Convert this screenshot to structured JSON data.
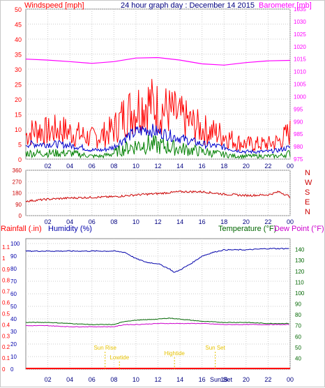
{
  "colors": {
    "windspeed": "#ff0000",
    "avg_wind": "#0000cc",
    "gust_low": "#008000",
    "barometer": "#ff00ff",
    "title": "#000080",
    "direction": "#cc0000",
    "rainfall": "#ff0000",
    "humidity": "#0000aa",
    "temperature": "#006600",
    "dewpoint": "#cc00cc",
    "sun": "#e6c200",
    "grid": "#cccccc"
  },
  "chart_data": [
    {
      "type": "line",
      "title": "24 hour graph day : December 14 2015",
      "left_label": "Windspeed [mph]",
      "right_label": "Barometer [mb]",
      "x_ticks": [
        "02",
        "04",
        "06",
        "08",
        "10",
        "12",
        "14",
        "16",
        "18",
        "20",
        "22",
        "00"
      ],
      "left_ticks": [
        "0",
        "5",
        "10",
        "15",
        "20",
        "25",
        "30",
        "35",
        "40",
        "45",
        "50"
      ],
      "right_ticks": [
        "975",
        "980",
        "985",
        "990",
        "995",
        "1000",
        "1005",
        "1010",
        "1015",
        "1020",
        "1025",
        "1030",
        "1035"
      ],
      "ylim_left": [
        0,
        50
      ],
      "ylim_right": [
        975,
        1035
      ],
      "series": [
        {
          "key": "barometer",
          "axis": "right",
          "x": [
            0,
            2,
            4,
            6,
            8,
            10,
            12,
            14,
            16,
            18,
            20,
            22,
            24
          ],
          "values": [
            1015,
            1014.6,
            1014,
            1013.3,
            1014,
            1015.4,
            1015.6,
            1014.6,
            1013.1,
            1012.6,
            1013.6,
            1014.3,
            1014.5
          ]
        },
        {
          "key": "windspeed",
          "axis": "left",
          "x": [
            0,
            1,
            2,
            3,
            4,
            5,
            6,
            7,
            8,
            9,
            10,
            11,
            12,
            13,
            14,
            15,
            16,
            17,
            18,
            19,
            20,
            21,
            22,
            23,
            24
          ],
          "values": [
            8,
            10,
            9,
            10,
            9,
            8,
            7,
            8,
            10,
            15,
            17,
            19,
            17,
            16,
            14,
            12,
            10,
            9,
            8,
            6,
            5,
            5,
            5,
            6,
            9
          ]
        },
        {
          "key": "avg_wind",
          "axis": "left",
          "x": [
            0,
            1,
            2,
            3,
            4,
            5,
            6,
            7,
            8,
            9,
            10,
            11,
            12,
            13,
            14,
            15,
            16,
            17,
            18,
            19,
            20,
            21,
            22,
            23,
            24
          ],
          "values": [
            5,
            5,
            5,
            5,
            4.5,
            4,
            3,
            3,
            4,
            7,
            9,
            10,
            9,
            8,
            7,
            6,
            5,
            4.5,
            4,
            3,
            2.5,
            2.5,
            2.5,
            3,
            4
          ]
        },
        {
          "key": "gust_low",
          "axis": "left",
          "x": [
            0,
            1,
            2,
            3,
            4,
            5,
            6,
            7,
            8,
            9,
            10,
            11,
            12,
            13,
            14,
            15,
            16,
            17,
            18,
            19,
            20,
            21,
            22,
            23,
            24
          ],
          "values": [
            2,
            2,
            2,
            2,
            2,
            1.5,
            1,
            1,
            2,
            3.5,
            4.5,
            5,
            4.5,
            4,
            3.5,
            3,
            2.5,
            2,
            1.5,
            1,
            1,
            1,
            1,
            1,
            2
          ]
        }
      ]
    },
    {
      "type": "scatter",
      "right_labels": [
        "N",
        "W",
        "S",
        "E",
        "N"
      ],
      "left_ticks": [
        "0",
        "90",
        "180",
        "270",
        "360"
      ],
      "x_ticks": [
        "02",
        "04",
        "06",
        "08",
        "10",
        "12",
        "14",
        "16",
        "18",
        "20",
        "22",
        "00"
      ],
      "ylim": [
        0,
        360
      ],
      "series": [
        {
          "key": "direction",
          "x": [
            0,
            2,
            4,
            6,
            8,
            10,
            12,
            14,
            16,
            18,
            20,
            22,
            23,
            24
          ],
          "values": [
            115,
            130,
            140,
            145,
            150,
            165,
            175,
            190,
            190,
            170,
            160,
            165,
            190,
            150
          ]
        }
      ]
    },
    {
      "type": "line",
      "labels": {
        "rainfall": "Rainfall (.in)",
        "humidity": "Humidity (%)",
        "temperature": "Temperature (°F)",
        "dewpoint": "Dew Point (°F)"
      },
      "rain_ticks": [
        "0",
        "0.1",
        "0.2",
        "0.3",
        "0.4",
        "0.5",
        "0.6",
        "0.7",
        "0.8",
        "0.9",
        "1",
        "1.1"
      ],
      "humidity_ticks": [
        "0",
        "10",
        "20",
        "30",
        "40",
        "50",
        "60",
        "70",
        "80",
        "90",
        "100"
      ],
      "temp_ticks": [
        "40",
        "50",
        "60",
        "70",
        "80",
        "90",
        "100",
        "110",
        "120",
        "130",
        "140"
      ],
      "x_ticks": [
        "02",
        "04",
        "06",
        "08",
        "10",
        "12",
        "14",
        "16",
        "18",
        "20",
        "22",
        "00"
      ],
      "ylim_humidity": [
        0,
        100
      ],
      "ylim_temp": [
        30,
        150
      ],
      "series": [
        {
          "key": "humidity",
          "axis": "humidity",
          "x": [
            0,
            2,
            4,
            6,
            8,
            9,
            10,
            11,
            12,
            13,
            13.5,
            14,
            15,
            16,
            17,
            18,
            20,
            22,
            24
          ],
          "values": [
            94,
            94,
            94,
            94,
            94,
            93,
            88,
            85,
            84,
            80,
            77,
            79,
            84,
            90,
            93,
            95,
            95,
            96,
            96
          ]
        },
        {
          "key": "temperature",
          "axis": "temp",
          "x": [
            0,
            2,
            4,
            6,
            8,
            9,
            10,
            12,
            13,
            14,
            16,
            18,
            20,
            22,
            24
          ],
          "values": [
            73,
            73,
            72,
            71,
            71,
            74,
            75,
            76,
            77,
            76,
            74,
            73,
            73,
            72,
            72
          ]
        },
        {
          "key": "dewpoint",
          "axis": "temp",
          "x": [
            0,
            2,
            4,
            6,
            8,
            9,
            10,
            12,
            14,
            16,
            18,
            20,
            22,
            24
          ],
          "values": [
            70,
            70,
            69,
            69,
            69,
            71,
            71,
            72,
            72,
            72,
            71,
            71,
            71,
            71
          ]
        },
        {
          "key": "rainfall",
          "axis": "rain",
          "x": [
            0,
            24
          ],
          "values": [
            0,
            0
          ]
        }
      ],
      "sun_events": [
        {
          "label": "Sun Rise",
          "hour": 7.2
        },
        {
          "label": "Lowtide",
          "hour": 8.5
        },
        {
          "label": "Hightide",
          "hour": 13.5
        },
        {
          "label": "Sun Set",
          "hour": 17.2
        }
      ],
      "bottom_overlay_label": "Sun Set"
    }
  ]
}
